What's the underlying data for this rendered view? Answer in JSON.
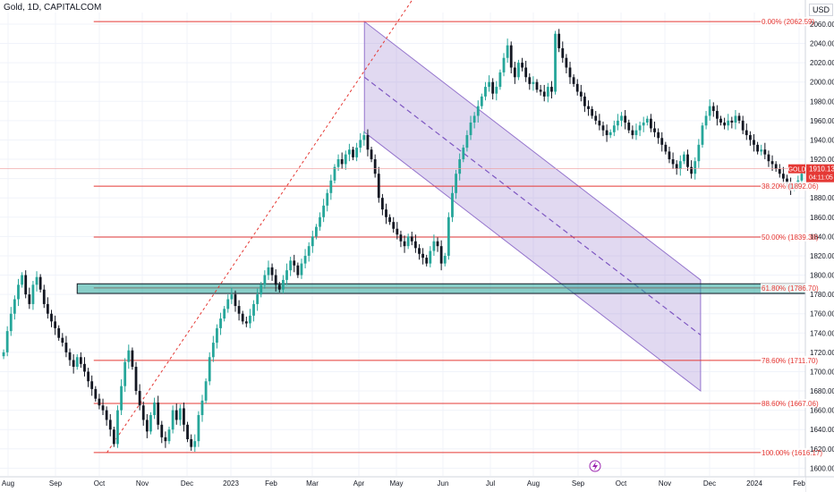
{
  "header": {
    "symbol_title": "Gold, 1D, CAPITALCOM",
    "currency": "USD"
  },
  "price_tag": {
    "symbol": "GOLD",
    "price": "1910.13",
    "countdown": "04:11:05",
    "color": "#e53935"
  },
  "colors": {
    "up_candle": "#26a69a",
    "down_candle": "#131722",
    "fib_line": "#e53935",
    "channel_fill": "#9575cd",
    "zone_fill": "#26a69a",
    "grid": "#f0f3fa"
  },
  "chart_data": {
    "type": "candlestick",
    "instrument": "Gold",
    "interval": "1D",
    "source": "CAPITALCOM",
    "y_range": [
      1592,
      2072
    ],
    "y_ticks": [
      1600,
      1620,
      1640,
      1660,
      1680,
      1700,
      1720,
      1740,
      1760,
      1780,
      1800,
      1820,
      1840,
      1860,
      1880,
      1900,
      1920,
      1940,
      1960,
      1980,
      2000,
      2020,
      2040,
      2060
    ],
    "x_ticks": [
      "Aug",
      "Sep",
      "Oct",
      "Nov",
      "Dec",
      "2023",
      "Feb",
      "Mar",
      "Apr",
      "May",
      "Jun",
      "Jul",
      "Aug",
      "Sep",
      "Oct",
      "Nov",
      "Dec",
      "2024",
      "Feb"
    ],
    "fib_levels": [
      {
        "label": "0.00% (2062.59)",
        "value": 2062.59
      },
      {
        "label": "38.20% (1892.06)",
        "value": 1892.06
      },
      {
        "label": "50.00% (1839.38)",
        "value": 1839.38
      },
      {
        "label": "61.80% (1786.70)",
        "value": 1786.7
      },
      {
        "label": "78.60% (1711.70)",
        "value": 1711.7
      },
      {
        "label": "88.60% (1667.06)",
        "value": 1667.06
      },
      {
        "label": "100.00% (1616.17)",
        "value": 1616.17
      }
    ],
    "trend_line": [
      {
        "t": 28.6,
        "v": 1616.17
      },
      {
        "t": 98.6,
        "v": 2062.59
      }
    ],
    "channel": {
      "start_t": 98.6,
      "end_t": 190,
      "upper": [
        2062.59,
        1795
      ],
      "lower": [
        1948,
        1680
      ],
      "median": [
        2005,
        1738
      ]
    },
    "support_zone": {
      "from_t": 20.5,
      "to_t": 190,
      "low": 1781,
      "high": 1791
    },
    "current_price": 1910.13,
    "closes": [
      1720,
      1742,
      1760,
      1775,
      1790,
      1800,
      1780,
      1770,
      1790,
      1798,
      1785,
      1770,
      1760,
      1752,
      1745,
      1735,
      1730,
      1720,
      1712,
      1705,
      1715,
      1708,
      1700,
      1690,
      1682,
      1672,
      1665,
      1660,
      1650,
      1640,
      1625,
      1660,
      1685,
      1710,
      1722,
      1705,
      1680,
      1665,
      1650,
      1638,
      1655,
      1668,
      1645,
      1632,
      1628,
      1640,
      1660,
      1650,
      1662,
      1645,
      1630,
      1622,
      1628,
      1655,
      1670,
      1690,
      1715,
      1730,
      1745,
      1755,
      1765,
      1775,
      1780,
      1768,
      1760,
      1752,
      1750,
      1758,
      1770,
      1780,
      1790,
      1800,
      1808,
      1800,
      1790,
      1785,
      1795,
      1805,
      1815,
      1810,
      1800,
      1812,
      1820,
      1830,
      1840,
      1850,
      1860,
      1872,
      1885,
      1898,
      1912,
      1920,
      1915,
      1925,
      1930,
      1922,
      1932,
      1940,
      1945,
      1930,
      1920,
      1905,
      1880,
      1868,
      1860,
      1855,
      1848,
      1842,
      1835,
      1830,
      1840,
      1835,
      1828,
      1822,
      1818,
      1812,
      1825,
      1835,
      1830,
      1812,
      1820,
      1860,
      1885,
      1905,
      1920,
      1932,
      1945,
      1958,
      1965,
      1975,
      1985,
      1995,
      2000,
      1988,
      1995,
      2010,
      2025,
      2038,
      2015,
      2005,
      2020,
      2015,
      2005,
      1998,
      2000,
      1992,
      1990,
      1985,
      1995,
      1990,
      2050,
      2035,
      2025,
      2015,
      2005,
      1998,
      1990,
      1985,
      1975,
      1972,
      1965,
      1960,
      1955,
      1950,
      1945,
      1948,
      1955,
      1960,
      1965,
      1958,
      1950,
      1945,
      1950,
      1955,
      1958,
      1962,
      1952,
      1948,
      1942,
      1935,
      1928,
      1920,
      1915,
      1910,
      1918,
      1925,
      1912,
      1905,
      1918,
      1935,
      1955,
      1965,
      1975,
      1970,
      1962,
      1958,
      1955,
      1960,
      1958,
      1965,
      1960,
      1950,
      1945,
      1940,
      1935,
      1928,
      1930,
      1925,
      1918,
      1915,
      1910,
      1905,
      1900,
      1895,
      1890,
      1893,
      1898,
      1905,
      1912,
      1918,
      1922,
      1920,
      1928,
      1935,
      1942,
      1948,
      1944,
      1940,
      1935,
      1930,
      1925,
      1928,
      1922,
      1918,
      1915,
      1912,
      1910
    ]
  }
}
